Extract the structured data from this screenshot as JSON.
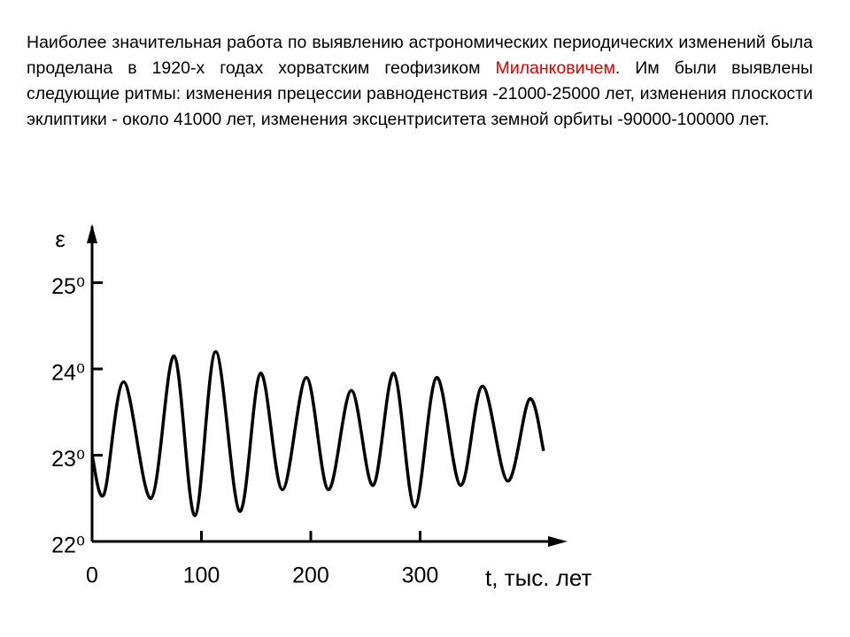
{
  "text": {
    "before": "Наиболее значительная работа по выявлению астрономических периодических изменений была проделана в 1920-х годах хорватским геофизиком ",
    "name": "Миланковичем",
    "after": ". Им были выявлены следующие ритмы: изменения прецессии равноденствия -21000-25000 лет, изменения плоскости эклиптики - около 41000 лет, изменения эксцентриситета земной орбиты -90000-100000 лет."
  },
  "chart_data": {
    "type": "line",
    "x_label": "t, тыс. лет",
    "y_label": "ε",
    "x": [
      0,
      11,
      29,
      54,
      75,
      94,
      113,
      135,
      154,
      174,
      196,
      216,
      237,
      257,
      276,
      295,
      315,
      337,
      357,
      380,
      400,
      413
    ],
    "series": [
      {
        "color": "#000000",
        "values": [
          23.0,
          22.55,
          23.85,
          22.5,
          24.15,
          22.3,
          24.2,
          22.35,
          23.95,
          22.6,
          23.9,
          22.6,
          23.75,
          22.65,
          23.95,
          22.4,
          23.9,
          22.65,
          23.8,
          22.7,
          23.65,
          23.05
        ]
      }
    ],
    "xlim": [
      0,
      430
    ],
    "ylim": [
      22,
      25.6
    ],
    "xticks": [
      0,
      100,
      200,
      300
    ],
    "yticks": [
      {
        "value": 22,
        "label": "22⁰"
      },
      {
        "value": 23,
        "label": "23⁰"
      },
      {
        "value": 24,
        "label": "24⁰"
      },
      {
        "value": 25,
        "label": "25⁰"
      }
    ]
  }
}
